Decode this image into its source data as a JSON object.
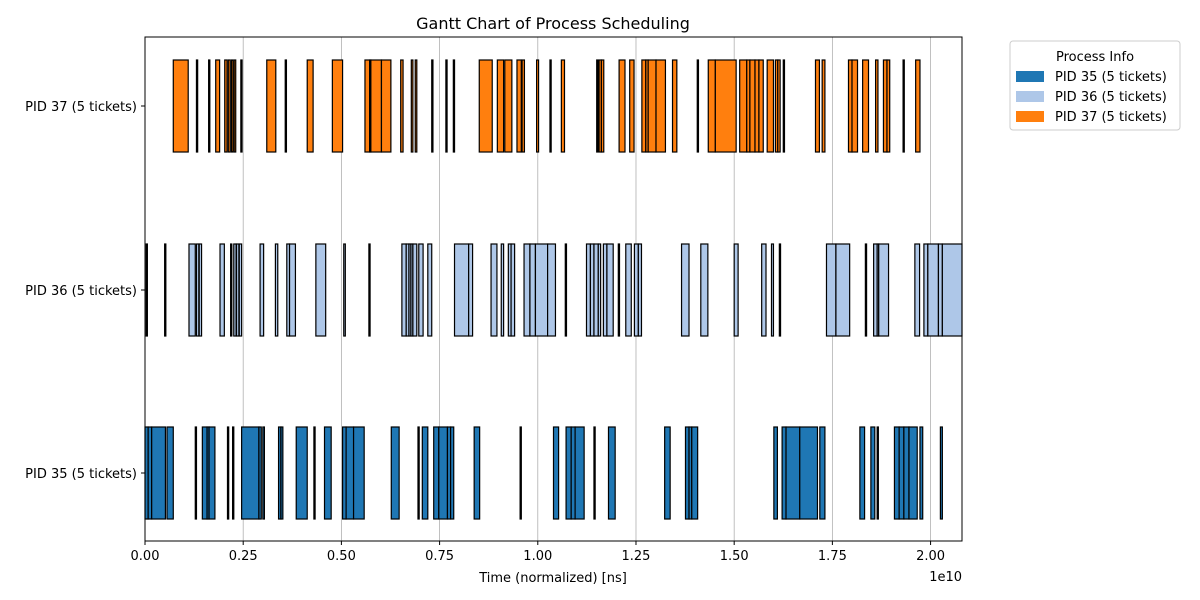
{
  "chart_data": {
    "type": "gantt",
    "title": "Gantt Chart of Process Scheduling",
    "xlabel": "Time (normalized) [ns]",
    "x_offset_label": "1e10",
    "xlim": [
      0,
      2.08
    ],
    "x_ticks": [
      0.0,
      0.25,
      0.5,
      0.75,
      1.0,
      1.25,
      1.5,
      1.75,
      2.0
    ],
    "x_tick_labels": [
      "0.00",
      "0.25",
      "0.50",
      "0.75",
      "1.00",
      "1.25",
      "1.50",
      "1.75",
      "2.00"
    ],
    "grid": "x",
    "legend_title": "Process Info",
    "legend_position": "outside-top-right",
    "rows": [
      {
        "label": "PID 37 (5 tickets)",
        "color": "#ff7f0e",
        "segments": [
          [
            0.072,
            0.11
          ],
          [
            0.131,
            0.133
          ],
          [
            0.162,
            0.164
          ],
          [
            0.18,
            0.19
          ],
          [
            0.203,
            0.209
          ],
          [
            0.212,
            0.217
          ],
          [
            0.22,
            0.224
          ],
          [
            0.227,
            0.231
          ],
          [
            0.244,
            0.246
          ],
          [
            0.31,
            0.333
          ],
          [
            0.357,
            0.36
          ],
          [
            0.413,
            0.428
          ],
          [
            0.477,
            0.503
          ],
          [
            0.56,
            0.572
          ],
          [
            0.572,
            0.575
          ],
          [
            0.575,
            0.602
          ],
          [
            0.602,
            0.626
          ],
          [
            0.651,
            0.657
          ],
          [
            0.678,
            0.682
          ],
          [
            0.688,
            0.692
          ],
          [
            0.73,
            0.732
          ],
          [
            0.766,
            0.769
          ],
          [
            0.785,
            0.788
          ],
          [
            0.851,
            0.884
          ],
          [
            0.897,
            0.913
          ],
          [
            0.916,
            0.934
          ],
          [
            0.947,
            0.958
          ],
          [
            0.96,
            0.966
          ],
          [
            0.997,
            1.002
          ],
          [
            1.031,
            1.033
          ],
          [
            1.06,
            1.068
          ],
          [
            1.15,
            1.152
          ],
          [
            1.156,
            1.162
          ],
          [
            1.162,
            1.168
          ],
          [
            1.207,
            1.222
          ],
          [
            1.234,
            1.245
          ],
          [
            1.265,
            1.275
          ],
          [
            1.275,
            1.281
          ],
          [
            1.281,
            1.301
          ],
          [
            1.301,
            1.325
          ],
          [
            1.343,
            1.354
          ],
          [
            1.406,
            1.409
          ],
          [
            1.434,
            1.452
          ],
          [
            1.452,
            1.505
          ],
          [
            1.514,
            1.532
          ],
          [
            1.532,
            1.54
          ],
          [
            1.54,
            1.553
          ],
          [
            1.553,
            1.563
          ],
          [
            1.563,
            1.574
          ],
          [
            1.584,
            1.6
          ],
          [
            1.605,
            1.611
          ],
          [
            1.611,
            1.617
          ],
          [
            1.625,
            1.627
          ],
          [
            1.707,
            1.717
          ],
          [
            1.724,
            1.731
          ],
          [
            1.791,
            1.8
          ],
          [
            1.8,
            1.814
          ],
          [
            1.827,
            1.842
          ],
          [
            1.86,
            1.866
          ],
          [
            1.88,
            1.889
          ],
          [
            1.889,
            1.896
          ],
          [
            1.93,
            1.933
          ],
          [
            1.962,
            1.973
          ]
        ]
      },
      {
        "label": "PID 36 (5 tickets)",
        "color": "#aec7e8",
        "segments": [
          [
            0.003,
            0.005
          ],
          [
            0.05,
            0.052
          ],
          [
            0.112,
            0.128
          ],
          [
            0.131,
            0.137
          ],
          [
            0.138,
            0.144
          ],
          [
            0.191,
            0.202
          ],
          [
            0.218,
            0.221
          ],
          [
            0.226,
            0.232
          ],
          [
            0.233,
            0.239
          ],
          [
            0.24,
            0.246
          ],
          [
            0.293,
            0.302
          ],
          [
            0.332,
            0.338
          ],
          [
            0.361,
            0.368
          ],
          [
            0.368,
            0.383
          ],
          [
            0.435,
            0.46
          ],
          [
            0.506,
            0.51
          ],
          [
            0.57,
            0.572
          ],
          [
            0.654,
            0.665
          ],
          [
            0.665,
            0.672
          ],
          [
            0.672,
            0.677
          ],
          [
            0.677,
            0.682
          ],
          [
            0.682,
            0.692
          ],
          [
            0.697,
            0.708
          ],
          [
            0.72,
            0.73
          ],
          [
            0.788,
            0.824
          ],
          [
            0.824,
            0.834
          ],
          [
            0.881,
            0.896
          ],
          [
            0.907,
            0.913
          ],
          [
            0.925,
            0.932
          ],
          [
            0.932,
            0.941
          ],
          [
            0.965,
            0.98
          ],
          [
            0.98,
            0.994
          ],
          [
            0.994,
            1.025
          ],
          [
            1.025,
            1.045
          ],
          [
            1.07,
            1.073
          ],
          [
            1.124,
            1.134
          ],
          [
            1.134,
            1.143
          ],
          [
            1.143,
            1.154
          ],
          [
            1.154,
            1.16
          ],
          [
            1.167,
            1.176
          ],
          [
            1.176,
            1.192
          ],
          [
            1.205,
            1.208
          ],
          [
            1.224,
            1.238
          ],
          [
            1.246,
            1.256
          ],
          [
            1.256,
            1.264
          ],
          [
            1.366,
            1.385
          ],
          [
            1.415,
            1.433
          ],
          [
            1.5,
            1.51
          ],
          [
            1.57,
            1.581
          ],
          [
            1.595,
            1.6
          ],
          [
            1.615,
            1.618
          ],
          [
            1.735,
            1.759
          ],
          [
            1.759,
            1.794
          ],
          [
            1.834,
            1.837
          ],
          [
            1.855,
            1.864
          ],
          [
            1.864,
            1.868
          ],
          [
            1.868,
            1.893
          ],
          [
            1.96,
            1.972
          ],
          [
            1.983,
            1.993
          ],
          [
            1.993,
            2.02
          ],
          [
            2.02,
            2.03
          ],
          [
            2.03,
            2.08
          ]
        ]
      },
      {
        "label": "PID 35 (5 tickets)",
        "color": "#1f77b4",
        "segments": [
          [
            0.0,
            0.008
          ],
          [
            0.008,
            0.017
          ],
          [
            0.017,
            0.052
          ],
          [
            0.056,
            0.072
          ],
          [
            0.128,
            0.13
          ],
          [
            0.146,
            0.158
          ],
          [
            0.158,
            0.163
          ],
          [
            0.163,
            0.178
          ],
          [
            0.21,
            0.212
          ],
          [
            0.223,
            0.226
          ],
          [
            0.246,
            0.29
          ],
          [
            0.29,
            0.296
          ],
          [
            0.3,
            0.304
          ],
          [
            0.34,
            0.346
          ],
          [
            0.346,
            0.351
          ],
          [
            0.385,
            0.413
          ],
          [
            0.43,
            0.433
          ],
          [
            0.457,
            0.474
          ],
          [
            0.503,
            0.512
          ],
          [
            0.512,
            0.531
          ],
          [
            0.531,
            0.558
          ],
          [
            0.627,
            0.647
          ],
          [
            0.695,
            0.698
          ],
          [
            0.706,
            0.72
          ],
          [
            0.735,
            0.748
          ],
          [
            0.748,
            0.77
          ],
          [
            0.77,
            0.778
          ],
          [
            0.778,
            0.786
          ],
          [
            0.838,
            0.852
          ],
          [
            0.955,
            0.958
          ],
          [
            1.04,
            1.053
          ],
          [
            1.072,
            1.085
          ],
          [
            1.085,
            1.095
          ],
          [
            1.095,
            1.118
          ],
          [
            1.143,
            1.145
          ],
          [
            1.18,
            1.197
          ],
          [
            1.323,
            1.337
          ],
          [
            1.376,
            1.385
          ],
          [
            1.385,
            1.392
          ],
          [
            1.392,
            1.407
          ],
          [
            1.601,
            1.61
          ],
          [
            1.622,
            1.632
          ],
          [
            1.632,
            1.667
          ],
          [
            1.667,
            1.712
          ],
          [
            1.718,
            1.731
          ],
          [
            1.82,
            1.832
          ],
          [
            1.848,
            1.858
          ],
          [
            1.864,
            1.867
          ],
          [
            1.908,
            1.92
          ],
          [
            1.92,
            1.932
          ],
          [
            1.932,
            1.945
          ],
          [
            1.945,
            1.966
          ],
          [
            1.973,
            1.98
          ],
          [
            2.025,
            2.03
          ]
        ]
      }
    ]
  }
}
